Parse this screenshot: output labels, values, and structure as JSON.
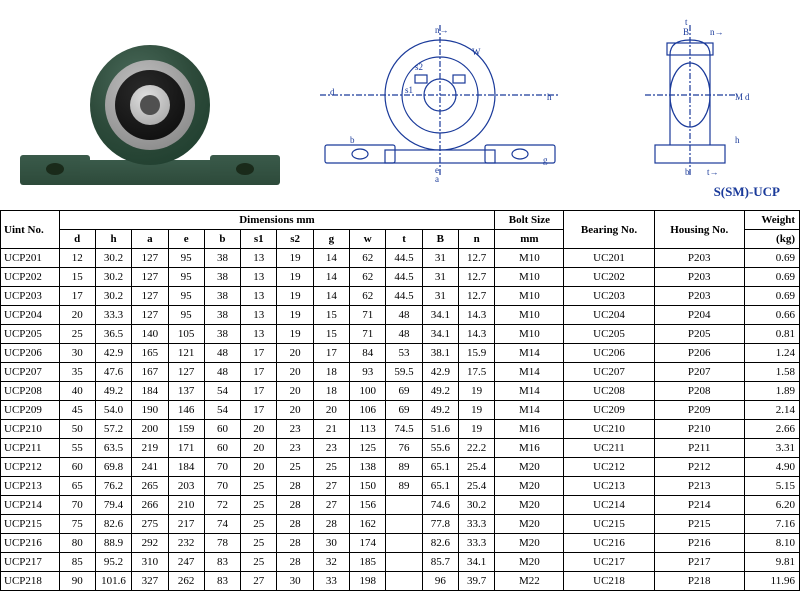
{
  "drawing_model_label": "S(SM)-UCP",
  "table": {
    "header_group_dimensions": "Dimensions  mm",
    "header_unit": "Uint No.",
    "header_bolt": "Bolt Size",
    "header_bolt_unit": "mm",
    "header_bearing": "Bearing No.",
    "header_housing": "Housing No.",
    "header_weight": "Weight",
    "header_weight_unit": "(kg)",
    "dim_cols": [
      "d",
      "h",
      "a",
      "e",
      "b",
      "s1",
      "s2",
      "g",
      "w",
      "t",
      "B",
      "n"
    ],
    "rows": [
      {
        "u": "UCP201",
        "d": "12",
        "h": "30.2",
        "a": "127",
        "e": "95",
        "b": "38",
        "s1": "13",
        "s2": "19",
        "g": "14",
        "w": "62",
        "t": "44.5",
        "B": "31",
        "n": "12.7",
        "bolt": "M10",
        "bear": "UC201",
        "hous": "P203",
        "wt": "0.69"
      },
      {
        "u": "UCP202",
        "d": "15",
        "h": "30.2",
        "a": "127",
        "e": "95",
        "b": "38",
        "s1": "13",
        "s2": "19",
        "g": "14",
        "w": "62",
        "t": "44.5",
        "B": "31",
        "n": "12.7",
        "bolt": "M10",
        "bear": "UC202",
        "hous": "P203",
        "wt": "0.69"
      },
      {
        "u": "UCP203",
        "d": "17",
        "h": "30.2",
        "a": "127",
        "e": "95",
        "b": "38",
        "s1": "13",
        "s2": "19",
        "g": "14",
        "w": "62",
        "t": "44.5",
        "B": "31",
        "n": "12.7",
        "bolt": "M10",
        "bear": "UC203",
        "hous": "P203",
        "wt": "0.69"
      },
      {
        "u": "UCP204",
        "d": "20",
        "h": "33.3",
        "a": "127",
        "e": "95",
        "b": "38",
        "s1": "13",
        "s2": "19",
        "g": "15",
        "w": "71",
        "t": "48",
        "B": "34.1",
        "n": "14.3",
        "bolt": "M10",
        "bear": "UC204",
        "hous": "P204",
        "wt": "0.66"
      },
      {
        "u": "UCP205",
        "d": "25",
        "h": "36.5",
        "a": "140",
        "e": "105",
        "b": "38",
        "s1": "13",
        "s2": "19",
        "g": "15",
        "w": "71",
        "t": "48",
        "B": "34.1",
        "n": "14.3",
        "bolt": "M10",
        "bear": "UC205",
        "hous": "P205",
        "wt": "0.81"
      },
      {
        "u": "UCP206",
        "d": "30",
        "h": "42.9",
        "a": "165",
        "e": "121",
        "b": "48",
        "s1": "17",
        "s2": "20",
        "g": "17",
        "w": "84",
        "t": "53",
        "B": "38.1",
        "n": "15.9",
        "bolt": "M14",
        "bear": "UC206",
        "hous": "P206",
        "wt": "1.24"
      },
      {
        "u": "UCP207",
        "d": "35",
        "h": "47.6",
        "a": "167",
        "e": "127",
        "b": "48",
        "s1": "17",
        "s2": "20",
        "g": "18",
        "w": "93",
        "t": "59.5",
        "B": "42.9",
        "n": "17.5",
        "bolt": "M14",
        "bear": "UC207",
        "hous": "P207",
        "wt": "1.58"
      },
      {
        "u": "UCP208",
        "d": "40",
        "h": "49.2",
        "a": "184",
        "e": "137",
        "b": "54",
        "s1": "17",
        "s2": "20",
        "g": "18",
        "w": "100",
        "t": "69",
        "B": "49.2",
        "n": "19",
        "bolt": "M14",
        "bear": "UC208",
        "hous": "P208",
        "wt": "1.89"
      },
      {
        "u": "UCP209",
        "d": "45",
        "h": "54.0",
        "a": "190",
        "e": "146",
        "b": "54",
        "s1": "17",
        "s2": "20",
        "g": "20",
        "w": "106",
        "t": "69",
        "B": "49.2",
        "n": "19",
        "bolt": "M14",
        "bear": "UC209",
        "hous": "P209",
        "wt": "2.14"
      },
      {
        "u": "UCP210",
        "d": "50",
        "h": "57.2",
        "a": "200",
        "e": "159",
        "b": "60",
        "s1": "20",
        "s2": "23",
        "g": "21",
        "w": "113",
        "t": "74.5",
        "B": "51.6",
        "n": "19",
        "bolt": "M16",
        "bear": "UC210",
        "hous": "P210",
        "wt": "2.66"
      },
      {
        "u": "UCP211",
        "d": "55",
        "h": "63.5",
        "a": "219",
        "e": "171",
        "b": "60",
        "s1": "20",
        "s2": "23",
        "g": "23",
        "w": "125",
        "t": "76",
        "B": "55.6",
        "n": "22.2",
        "bolt": "M16",
        "bear": "UC211",
        "hous": "P211",
        "wt": "3.31"
      },
      {
        "u": "UCP212",
        "d": "60",
        "h": "69.8",
        "a": "241",
        "e": "184",
        "b": "70",
        "s1": "20",
        "s2": "25",
        "g": "25",
        "w": "138",
        "t": "89",
        "B": "65.1",
        "n": "25.4",
        "bolt": "M20",
        "bear": "UC212",
        "hous": "P212",
        "wt": "4.90"
      },
      {
        "u": "UCP213",
        "d": "65",
        "h": "76.2",
        "a": "265",
        "e": "203",
        "b": "70",
        "s1": "25",
        "s2": "28",
        "g": "27",
        "w": "150",
        "t": "89",
        "B": "65.1",
        "n": "25.4",
        "bolt": "M20",
        "bear": "UC213",
        "hous": "P213",
        "wt": "5.15"
      },
      {
        "u": "UCP214",
        "d": "70",
        "h": "79.4",
        "a": "266",
        "e": "210",
        "b": "72",
        "s1": "25",
        "s2": "28",
        "g": "27",
        "w": "156",
        "t": "",
        "B": "74.6",
        "n": "30.2",
        "bolt": "M20",
        "bear": "UC214",
        "hous": "P214",
        "wt": "6.20"
      },
      {
        "u": "UCP215",
        "d": "75",
        "h": "82.6",
        "a": "275",
        "e": "217",
        "b": "74",
        "s1": "25",
        "s2": "28",
        "g": "28",
        "w": "162",
        "t": "",
        "B": "77.8",
        "n": "33.3",
        "bolt": "M20",
        "bear": "UC215",
        "hous": "P215",
        "wt": "7.16"
      },
      {
        "u": "UCP216",
        "d": "80",
        "h": "88.9",
        "a": "292",
        "e": "232",
        "b": "78",
        "s1": "25",
        "s2": "28",
        "g": "30",
        "w": "174",
        "t": "",
        "B": "82.6",
        "n": "33.3",
        "bolt": "M20",
        "bear": "UC216",
        "hous": "P216",
        "wt": "8.10"
      },
      {
        "u": "UCP217",
        "d": "85",
        "h": "95.2",
        "a": "310",
        "e": "247",
        "b": "83",
        "s1": "25",
        "s2": "28",
        "g": "32",
        "w": "185",
        "t": "",
        "B": "85.7",
        "n": "34.1",
        "bolt": "M20",
        "bear": "UC217",
        "hous": "P217",
        "wt": "9.81"
      },
      {
        "u": "UCP218",
        "d": "90",
        "h": "101.6",
        "a": "327",
        "e": "262",
        "b": "83",
        "s1": "27",
        "s2": "30",
        "g": "33",
        "w": "198",
        "t": "",
        "B": "96",
        "n": "39.7",
        "bolt": "M22",
        "bear": "UC218",
        "hous": "P218",
        "wt": "11.96"
      }
    ]
  }
}
